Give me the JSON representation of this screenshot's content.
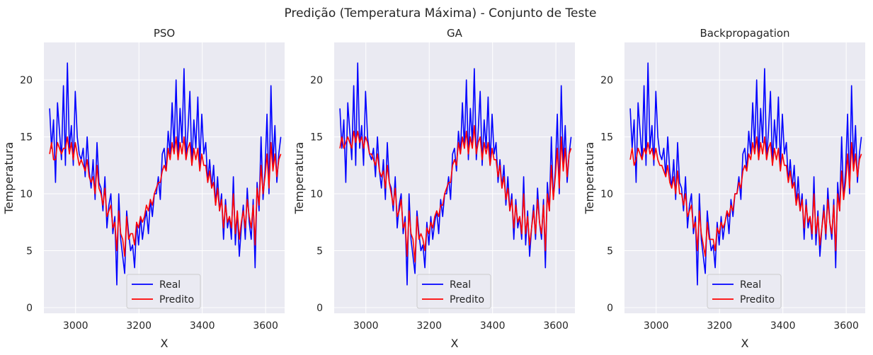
{
  "suptitle": "Predição (Temperatura Máxima) - Conjunto de Teste",
  "colors": {
    "plot_bg": "#eaeaf2",
    "grid": "#ffffff",
    "real": "#0000ff",
    "predicted": "#ff0000",
    "text": "#262626"
  },
  "legend_labels": {
    "real": "Real",
    "predicted": "Predito"
  },
  "chart_data": [
    {
      "type": "line",
      "title": "PSO",
      "xlabel": "X",
      "ylabel": "Temperatura",
      "xlim": [
        2900,
        3660
      ],
      "ylim": [
        -0.5,
        23.3
      ],
      "xticks": [
        3000,
        3200,
        3400,
        3600
      ],
      "yticks": [
        0,
        5,
        10,
        15,
        20
      ],
      "grid": true,
      "legend_position": "lower-center",
      "x_range": [
        2918,
        3648
      ],
      "series": [
        {
          "name": "Real",
          "color": "#0000ff",
          "values": [
            17.5,
            14.0,
            16.5,
            11.0,
            18.0,
            15.5,
            13.0,
            19.5,
            12.5,
            21.5,
            14.0,
            16.0,
            12.5,
            19.0,
            15.0,
            13.5,
            13.0,
            14.0,
            11.5,
            15.0,
            12.0,
            10.5,
            13.0,
            9.5,
            14.5,
            11.0,
            10.5,
            8.5,
            11.5,
            7.0,
            9.0,
            10.0,
            6.5,
            8.0,
            2.0,
            10.0,
            6.0,
            4.5,
            3.0,
            8.5,
            6.5,
            5.0,
            5.5,
            3.5,
            7.5,
            5.5,
            8.0,
            6.0,
            7.5,
            8.5,
            6.5,
            9.5,
            8.0,
            10.0,
            10.0,
            11.5,
            9.5,
            13.5,
            14.0,
            12.0,
            15.5,
            13.5,
            18.0,
            14.0,
            20.0,
            13.0,
            17.5,
            14.5,
            21.0,
            13.0,
            15.5,
            19.0,
            12.5,
            16.5,
            14.0,
            18.5,
            12.5,
            17.0,
            13.5,
            14.5,
            11.0,
            13.0,
            10.5,
            12.5,
            9.0,
            11.5,
            8.5,
            10.0,
            6.0,
            9.5,
            7.0,
            8.0,
            6.0,
            11.5,
            5.5,
            8.5,
            4.5,
            7.0,
            9.0,
            6.0,
            10.5,
            7.5,
            6.0,
            9.5,
            3.5,
            11.0,
            8.5,
            15.0,
            9.5,
            12.0,
            17.0,
            10.0,
            19.5,
            12.5,
            16.0,
            11.0,
            13.5,
            15.0
          ]
        },
        {
          "name": "Predito",
          "color": "#ff0000",
          "values": [
            13.5,
            14.5,
            13.0,
            13.0,
            14.5,
            14.0,
            13.5,
            14.0,
            14.0,
            15.0,
            13.5,
            14.5,
            13.0,
            14.5,
            13.5,
            12.5,
            13.0,
            12.5,
            12.0,
            13.0,
            11.5,
            11.0,
            11.5,
            10.0,
            12.5,
            10.5,
            10.0,
            9.0,
            10.5,
            8.0,
            8.5,
            9.0,
            7.0,
            7.5,
            5.0,
            8.5,
            6.5,
            6.0,
            4.5,
            8.0,
            6.0,
            6.5,
            6.5,
            5.5,
            7.5,
            7.0,
            8.0,
            7.5,
            8.0,
            9.0,
            8.5,
            9.5,
            9.0,
            10.0,
            10.5,
            11.0,
            11.0,
            12.0,
            12.5,
            12.0,
            14.0,
            13.0,
            14.5,
            13.5,
            15.0,
            13.0,
            14.5,
            13.5,
            15.0,
            13.0,
            14.0,
            14.5,
            12.5,
            14.0,
            13.0,
            14.0,
            12.0,
            13.5,
            12.5,
            12.5,
            11.0,
            12.0,
            10.5,
            11.0,
            9.0,
            10.5,
            8.5,
            9.5,
            7.0,
            9.0,
            7.5,
            8.0,
            7.0,
            10.0,
            6.5,
            8.5,
            6.0,
            7.5,
            8.5,
            7.0,
            9.5,
            8.0,
            7.0,
            9.0,
            5.5,
            10.5,
            9.0,
            12.5,
            10.0,
            11.5,
            13.5,
            10.5,
            14.5,
            12.0,
            13.5,
            11.5,
            13.0,
            13.5
          ]
        }
      ],
      "legend": [
        "Real",
        "Predito"
      ]
    },
    {
      "type": "line",
      "title": "GA",
      "xlabel": "X",
      "ylabel": "Temperatura",
      "xlim": [
        2900,
        3660
      ],
      "ylim": [
        -0.5,
        23.3
      ],
      "xticks": [
        3000,
        3200,
        3400,
        3600
      ],
      "yticks": [
        0,
        5,
        10,
        15,
        20
      ],
      "grid": true,
      "legend_position": "lower-center",
      "x_range": [
        2918,
        3648
      ],
      "series": [
        {
          "name": "Real",
          "color": "#0000ff",
          "values": [
            17.5,
            14.0,
            16.5,
            11.0,
            18.0,
            15.5,
            13.0,
            19.5,
            12.5,
            21.5,
            14.0,
            16.0,
            12.5,
            19.0,
            15.0,
            13.5,
            13.0,
            14.0,
            11.5,
            15.0,
            12.0,
            10.5,
            13.0,
            9.5,
            14.5,
            11.0,
            10.5,
            8.5,
            11.5,
            7.0,
            9.0,
            10.0,
            6.5,
            8.0,
            2.0,
            10.0,
            6.0,
            4.5,
            3.0,
            8.5,
            6.5,
            5.0,
            5.5,
            3.5,
            7.5,
            5.5,
            8.0,
            6.0,
            7.5,
            8.5,
            6.5,
            9.5,
            8.0,
            10.0,
            10.0,
            11.5,
            9.5,
            13.5,
            14.0,
            12.0,
            15.5,
            13.5,
            18.0,
            14.0,
            20.0,
            13.0,
            17.5,
            14.5,
            21.0,
            13.0,
            15.5,
            19.0,
            12.5,
            16.5,
            14.0,
            18.5,
            12.5,
            17.0,
            13.5,
            14.5,
            11.0,
            13.0,
            10.5,
            12.5,
            9.0,
            11.5,
            8.5,
            10.0,
            6.0,
            9.5,
            7.0,
            8.0,
            6.0,
            11.5,
            5.5,
            8.5,
            4.5,
            7.0,
            9.0,
            6.0,
            10.5,
            7.5,
            6.0,
            9.5,
            3.5,
            11.0,
            8.5,
            15.0,
            9.5,
            12.0,
            17.0,
            10.0,
            19.5,
            12.5,
            16.0,
            11.0,
            13.5,
            15.0
          ]
        },
        {
          "name": "Predito",
          "color": "#ff0000",
          "values": [
            14.0,
            15.0,
            14.0,
            14.5,
            15.0,
            14.5,
            14.0,
            15.5,
            14.5,
            15.5,
            14.5,
            15.0,
            14.0,
            15.0,
            14.5,
            13.5,
            13.5,
            13.0,
            12.5,
            13.5,
            12.0,
            11.5,
            12.0,
            10.5,
            12.5,
            11.0,
            10.0,
            9.0,
            10.5,
            8.0,
            8.5,
            9.5,
            7.0,
            7.5,
            4.5,
            8.5,
            6.5,
            6.0,
            4.0,
            8.0,
            6.0,
            6.5,
            6.0,
            5.0,
            7.0,
            6.5,
            7.5,
            7.0,
            8.0,
            8.5,
            8.0,
            9.0,
            9.0,
            10.0,
            10.5,
            11.0,
            11.0,
            12.5,
            13.0,
            12.5,
            14.5,
            13.5,
            15.0,
            14.0,
            15.5,
            13.5,
            15.0,
            14.0,
            16.0,
            13.5,
            14.5,
            15.0,
            13.0,
            14.5,
            13.5,
            14.5,
            12.5,
            14.0,
            13.0,
            13.0,
            11.5,
            12.5,
            10.5,
            11.5,
            9.5,
            10.5,
            8.5,
            9.5,
            7.0,
            9.0,
            7.5,
            8.0,
            6.5,
            10.0,
            6.5,
            8.0,
            5.5,
            7.0,
            8.5,
            6.5,
            9.5,
            7.5,
            6.5,
            9.0,
            5.0,
            10.0,
            8.5,
            12.5,
            9.5,
            11.5,
            14.0,
            10.5,
            15.0,
            12.0,
            14.0,
            11.5,
            13.5,
            14.0
          ]
        }
      ],
      "legend": [
        "Real",
        "Predito"
      ]
    },
    {
      "type": "line",
      "title": "Backpropagation",
      "xlabel": "X",
      "ylabel": "Temperatura",
      "xlim": [
        2900,
        3660
      ],
      "ylim": [
        -0.5,
        23.3
      ],
      "xticks": [
        3000,
        3200,
        3400,
        3600
      ],
      "yticks": [
        0,
        5,
        10,
        15,
        20
      ],
      "grid": true,
      "legend_position": "lower-center",
      "x_range": [
        2918,
        3648
      ],
      "series": [
        {
          "name": "Real",
          "color": "#0000ff",
          "values": [
            17.5,
            14.0,
            16.5,
            11.0,
            18.0,
            15.5,
            13.0,
            19.5,
            12.5,
            21.5,
            14.0,
            16.0,
            12.5,
            19.0,
            15.0,
            13.5,
            13.0,
            14.0,
            11.5,
            15.0,
            12.0,
            10.5,
            13.0,
            9.5,
            14.5,
            11.0,
            10.5,
            8.5,
            11.5,
            7.0,
            9.0,
            10.0,
            6.5,
            8.0,
            2.0,
            10.0,
            6.0,
            4.5,
            3.0,
            8.5,
            6.5,
            5.0,
            5.5,
            3.5,
            7.5,
            5.5,
            8.0,
            6.0,
            7.5,
            8.5,
            6.5,
            9.5,
            8.0,
            10.0,
            10.0,
            11.5,
            9.5,
            13.5,
            14.0,
            12.0,
            15.5,
            13.5,
            18.0,
            14.0,
            20.0,
            13.0,
            17.5,
            14.5,
            21.0,
            13.0,
            15.5,
            19.0,
            12.5,
            16.5,
            14.0,
            18.5,
            12.5,
            17.0,
            13.5,
            14.5,
            11.0,
            13.0,
            10.5,
            12.5,
            9.0,
            11.5,
            8.5,
            10.0,
            6.0,
            9.5,
            7.0,
            8.0,
            6.0,
            11.5,
            5.5,
            8.5,
            4.5,
            7.0,
            9.0,
            6.0,
            10.5,
            7.5,
            6.0,
            9.5,
            3.5,
            11.0,
            8.5,
            15.0,
            9.5,
            12.0,
            17.0,
            10.0,
            19.5,
            12.5,
            16.0,
            11.0,
            13.5,
            15.0
          ]
        },
        {
          "name": "Predito",
          "color": "#ff0000",
          "values": [
            13.0,
            14.0,
            12.5,
            13.0,
            14.0,
            13.5,
            13.0,
            14.0,
            13.5,
            14.5,
            13.5,
            14.0,
            13.0,
            14.0,
            13.0,
            12.5,
            12.5,
            12.0,
            11.5,
            12.5,
            11.0,
            10.5,
            11.5,
            10.0,
            12.0,
            10.0,
            10.0,
            9.0,
            10.0,
            8.0,
            8.5,
            9.0,
            7.0,
            7.5,
            5.0,
            8.5,
            6.5,
            5.5,
            4.5,
            7.5,
            6.0,
            6.0,
            6.0,
            5.0,
            7.0,
            6.5,
            7.5,
            7.0,
            7.5,
            8.5,
            8.0,
            9.0,
            8.5,
            10.0,
            10.0,
            11.0,
            10.5,
            12.0,
            12.5,
            12.0,
            13.5,
            13.0,
            14.5,
            13.5,
            15.0,
            13.0,
            14.5,
            13.5,
            15.0,
            13.0,
            14.0,
            14.5,
            12.5,
            14.0,
            13.0,
            14.0,
            12.0,
            13.5,
            12.5,
            12.5,
            11.0,
            12.0,
            10.5,
            11.0,
            9.0,
            10.0,
            8.5,
            9.5,
            7.0,
            9.0,
            7.5,
            8.0,
            6.5,
            10.0,
            6.5,
            8.0,
            5.5,
            7.0,
            8.5,
            6.5,
            9.5,
            7.5,
            6.5,
            9.0,
            5.0,
            10.0,
            8.5,
            12.0,
            9.5,
            11.0,
            13.5,
            10.5,
            14.5,
            12.0,
            13.5,
            11.5,
            13.0,
            13.5
          ]
        }
      ],
      "legend": [
        "Real",
        "Predito"
      ]
    }
  ]
}
